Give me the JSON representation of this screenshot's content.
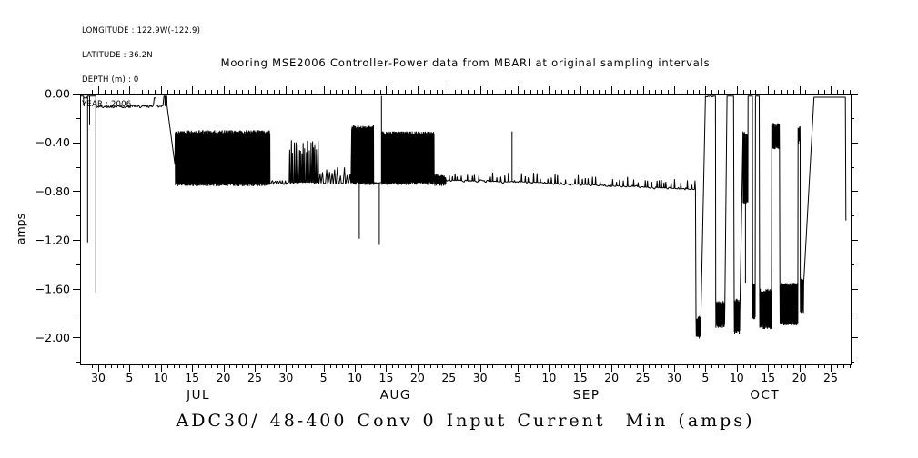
{
  "meta_block": {
    "longitude": "LONGITUDE : 122.9W(-122.9)",
    "latitude": "LATITUDE : 36.2N",
    "depth": "DEPTH (m) : 0",
    "year": "YEAR : 2006"
  },
  "chart_data": {
    "type": "line",
    "title": "Mooring MSE2006 Controller-Power data from MBARI at original sampling intervals",
    "footer_title": "ADC30/ 48-400 Conv 0 Input Current  Min (amps)",
    "ylabel": "amps",
    "line_color": "#000000",
    "background": "#ffffff",
    "grid": false,
    "legend": "none",
    "x_unit": "day_of_year_2006",
    "xlim_doy": [
      178.1,
      301.2
    ],
    "ylim": [
      -2.22,
      0.0
    ],
    "y_major_ticks": [
      {
        "v": 0.0,
        "label": "0.00"
      },
      {
        "v": -0.4,
        "label": "−0.40"
      },
      {
        "v": -0.8,
        "label": "−0.80"
      },
      {
        "v": -1.2,
        "label": "−1.20"
      },
      {
        "v": -1.6,
        "label": "−1.60"
      },
      {
        "v": -2.0,
        "label": "−2.00"
      }
    ],
    "y_minor_ticks": [
      -0.2,
      -0.6,
      -1.0,
      -1.4,
      -1.8,
      -2.2
    ],
    "x_minor_step_days": 1,
    "x_major_ticks": [
      {
        "doy": 181,
        "label": "30"
      },
      {
        "doy": 186,
        "label": "5"
      },
      {
        "doy": 191,
        "label": "10"
      },
      {
        "doy": 196,
        "label": "15"
      },
      {
        "doy": 201,
        "label": "20"
      },
      {
        "doy": 206,
        "label": "25"
      },
      {
        "doy": 211,
        "label": "30"
      },
      {
        "doy": 217,
        "label": "5"
      },
      {
        "doy": 222,
        "label": "10"
      },
      {
        "doy": 227,
        "label": "15"
      },
      {
        "doy": 232,
        "label": "20"
      },
      {
        "doy": 237,
        "label": "25"
      },
      {
        "doy": 242,
        "label": "30"
      },
      {
        "doy": 248,
        "label": "5"
      },
      {
        "doy": 253,
        "label": "10"
      },
      {
        "doy": 258,
        "label": "15"
      },
      {
        "doy": 263,
        "label": "20"
      },
      {
        "doy": 268,
        "label": "25"
      },
      {
        "doy": 273,
        "label": "30"
      },
      {
        "doy": 278,
        "label": "5"
      },
      {
        "doy": 283,
        "label": "10"
      },
      {
        "doy": 288,
        "label": "15"
      },
      {
        "doy": 293,
        "label": "20"
      },
      {
        "doy": 298,
        "label": "25"
      }
    ],
    "month_labels": [
      {
        "doy": 197.0,
        "label": "JUL"
      },
      {
        "doy": 228.5,
        "label": "AUG"
      },
      {
        "doy": 259.0,
        "label": "SEP"
      },
      {
        "doy": 287.5,
        "label": "OCT"
      }
    ],
    "series_segments": [
      {
        "type": "flat",
        "t0": 178.1,
        "t1": 178.55,
        "v": -0.02
      },
      {
        "type": "spike",
        "t": 178.65,
        "base": -0.02,
        "v": -0.1
      },
      {
        "type": "flat",
        "t0": 178.7,
        "t1": 179.2,
        "v": -0.035
      },
      {
        "type": "spike",
        "t": 179.3,
        "base": -0.02,
        "v": -1.22
      },
      {
        "type": "flat",
        "t0": 179.35,
        "t1": 179.55,
        "v": -0.02
      },
      {
        "type": "spike",
        "t": 179.62,
        "base": -0.02,
        "v": -0.26
      },
      {
        "type": "flat",
        "t0": 179.7,
        "t1": 180.55,
        "v": -0.02
      },
      {
        "type": "spike",
        "t": 180.62,
        "base": -0.02,
        "v": -1.63
      },
      {
        "type": "flat",
        "t0": 180.7,
        "t1": 189.9,
        "v": -0.105,
        "amp": 0.012
      },
      {
        "type": "flat",
        "t0": 189.95,
        "t1": 190.2,
        "v": -0.035
      },
      {
        "type": "flat",
        "t0": 190.25,
        "t1": 191.45,
        "v": -0.105,
        "amp": 0.01
      },
      {
        "type": "flat",
        "t0": 191.5,
        "t1": 191.65,
        "v": -0.02
      },
      {
        "type": "flat",
        "t0": 191.68,
        "t1": 191.72,
        "v": -0.1
      },
      {
        "type": "flat",
        "t0": 191.75,
        "t1": 191.95,
        "v": -0.02
      },
      {
        "type": "ramp",
        "t0": 192.0,
        "t1": 193.25,
        "v0": -0.1,
        "v1": -0.58
      },
      {
        "type": "band",
        "t0": 193.3,
        "t1": 208.45,
        "lo": -0.76,
        "hi": -0.3
      },
      {
        "type": "flat",
        "t0": 208.5,
        "t1": 211.45,
        "v": -0.73,
        "amp": 0.018
      },
      {
        "type": "spiketrain",
        "t0": 211.5,
        "t1": 216.2,
        "base": -0.73,
        "topMin": -0.5,
        "topMax": -0.38,
        "every": 0.22
      },
      {
        "type": "spiketrain",
        "t0": 216.25,
        "t1": 221.4,
        "base": -0.735,
        "topMin": -0.68,
        "topMax": -0.6,
        "every": 0.5
      },
      {
        "type": "band",
        "t0": 221.5,
        "t1": 222.65,
        "lo": -0.75,
        "hi": -0.26
      },
      {
        "type": "spike",
        "t": 222.7,
        "base": -0.75,
        "v": -1.19
      },
      {
        "type": "band",
        "t0": 222.75,
        "t1": 225.0,
        "lo": -0.75,
        "hi": -0.26
      },
      {
        "type": "flat",
        "t0": 225.05,
        "t1": 225.85,
        "v": -0.73,
        "amp": 0.015
      },
      {
        "type": "spike",
        "t": 225.9,
        "base": -0.73,
        "v": -1.24
      },
      {
        "type": "flat",
        "t0": 225.95,
        "t1": 226.2,
        "v": -0.73
      },
      {
        "type": "spike",
        "t": 226.25,
        "base": -0.73,
        "v": -0.02
      },
      {
        "type": "band",
        "t0": 226.3,
        "t1": 234.7,
        "lo": -0.75,
        "hi": -0.31
      },
      {
        "type": "band",
        "t0": 234.75,
        "t1": 236.5,
        "lo": -0.76,
        "hi": -0.66
      },
      {
        "type": "bumps",
        "t0": 236.55,
        "t1": 247.0,
        "v0": -0.71,
        "v1": -0.725,
        "amp": 0.012,
        "bump": 0.06
      },
      {
        "type": "spike",
        "t": 247.1,
        "base": -0.72,
        "v": -0.31
      },
      {
        "type": "bumps",
        "t0": 247.2,
        "t1": 276.4,
        "v0": -0.72,
        "v1": -0.785,
        "amp": 0.012,
        "bump": 0.06
      },
      {
        "type": "band",
        "t0": 276.5,
        "t1": 277.2,
        "lo": -2.01,
        "hi": -1.82
      },
      {
        "type": "ramp",
        "t0": 277.25,
        "t1": 278.0,
        "v0": -1.88,
        "v1": -0.02
      },
      {
        "type": "flat",
        "t0": 278.05,
        "t1": 279.55,
        "v": -0.02,
        "amp": 0.008
      },
      {
        "type": "spike",
        "t": 279.6,
        "base": -0.02,
        "v": -0.25
      },
      {
        "type": "band",
        "t0": 279.65,
        "t1": 281.05,
        "lo": -1.92,
        "hi": -1.7
      },
      {
        "type": "ramp",
        "t0": 281.1,
        "t1": 281.45,
        "v0": -1.75,
        "v1": -0.02
      },
      {
        "type": "flat",
        "t0": 281.5,
        "t1": 282.5,
        "v": -0.02
      },
      {
        "type": "band",
        "t0": 282.6,
        "t1": 283.45,
        "lo": -1.97,
        "hi": -1.68
      },
      {
        "type": "ramp",
        "t0": 283.5,
        "t1": 284.0,
        "v0": -1.8,
        "v1": -0.31
      },
      {
        "type": "band",
        "t0": 284.0,
        "t1": 284.35,
        "lo": -0.91,
        "hi": -0.31
      },
      {
        "type": "spike",
        "t": 284.4,
        "base": -0.91,
        "v": -1.55
      },
      {
        "type": "band",
        "t0": 284.45,
        "t1": 284.75,
        "lo": -0.91,
        "hi": -0.31
      },
      {
        "type": "flat",
        "t0": 284.8,
        "t1": 285.5,
        "v": -0.02
      },
      {
        "type": "band",
        "t0": 285.55,
        "t1": 285.95,
        "lo": -1.85,
        "hi": -1.55
      },
      {
        "type": "flat",
        "t0": 286.0,
        "t1": 286.6,
        "v": -0.02
      },
      {
        "type": "band",
        "t0": 286.65,
        "t1": 288.55,
        "lo": -1.93,
        "hi": -1.6
      },
      {
        "type": "band",
        "t0": 288.6,
        "t1": 289.85,
        "lo": -0.46,
        "hi": -0.24
      },
      {
        "type": "band",
        "t0": 289.9,
        "t1": 292.75,
        "lo": -1.9,
        "hi": -1.55
      },
      {
        "type": "band",
        "t0": 292.8,
        "t1": 293.1,
        "lo": -0.41,
        "hi": -0.26
      },
      {
        "type": "band",
        "t0": 293.15,
        "t1": 293.65,
        "lo": -1.8,
        "hi": -1.5
      },
      {
        "type": "ramp",
        "t0": 293.7,
        "t1": 295.35,
        "v0": -1.55,
        "v1": -0.03
      },
      {
        "type": "flat",
        "t0": 295.4,
        "t1": 300.3,
        "v": -0.03
      },
      {
        "type": "ramp",
        "t0": 300.35,
        "t1": 300.45,
        "v0": -0.03,
        "v1": -1.04
      }
    ]
  }
}
